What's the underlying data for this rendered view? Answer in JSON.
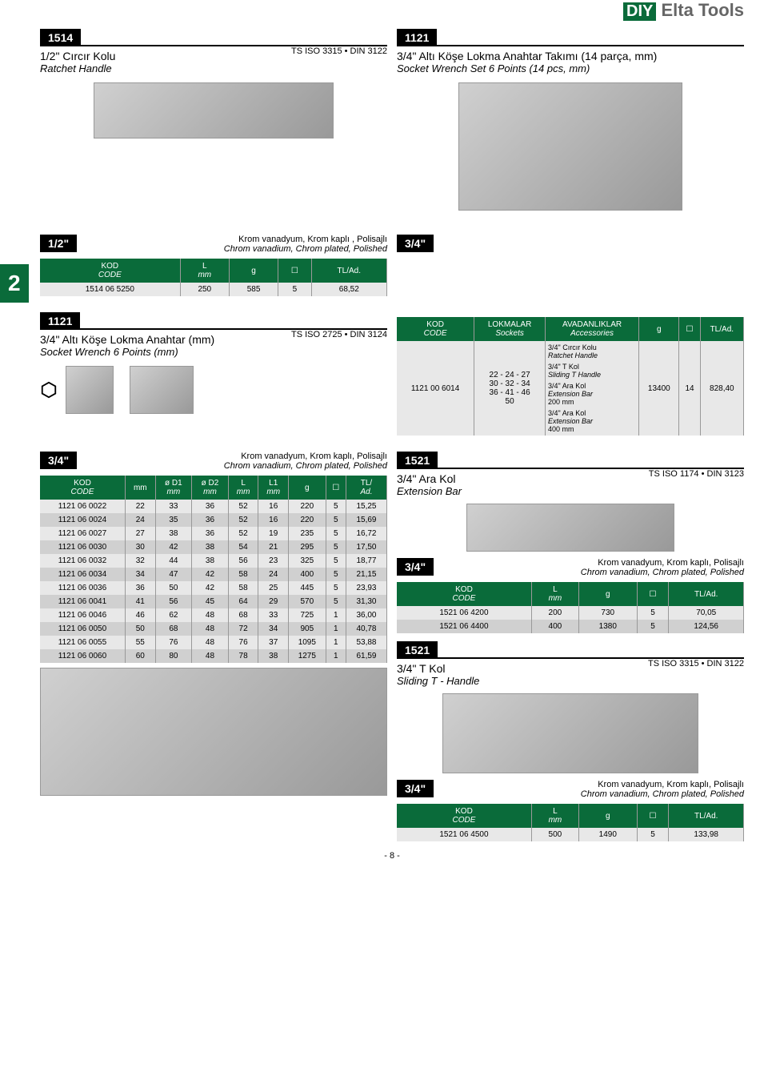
{
  "brand": {
    "diy": "DIY",
    "name": "Elta Tools"
  },
  "sec1514": {
    "tag": "1514",
    "title_tr": "1/2\" Cırcır Kolu",
    "title_en": "Ratchet Handle",
    "std": "TS ISO 3315 • DIN 3122",
    "size": "1/2\"",
    "mat_tr": "Krom vanadyum, Krom kaplı , Polisajlı",
    "mat_en": "Chrom vanadium, Chrom plated, Polished",
    "cols": [
      "KOD\nCODE",
      "L\nmm",
      "g",
      "☐",
      "TL/Ad."
    ],
    "rows": [
      [
        "1514 06 5250",
        "250",
        "585",
        "5",
        "68,52"
      ]
    ]
  },
  "sec1121set": {
    "tag": "1121",
    "title_tr": "3/4\" Altı Köşe Lokma Anahtar Takımı (14 parça, mm)",
    "title_en": "Socket Wrench Set 6 Points (14 pcs, mm)",
    "size": "3/4\"",
    "cols": [
      "KOD\nCODE",
      "LOKMALAR\nSockets",
      "AVADANLIKLAR\nAccessories",
      "g",
      "☐",
      "TL/Ad."
    ],
    "code": "1121 00 6014",
    "sockets": "22 - 24 - 27\n30 - 32 - 34\n36 - 41 - 46\n50",
    "acc1_tr": "3/4\" Cırcır Kolu",
    "acc1_en": "Ratchet Handle",
    "acc2_tr": "3/4\" T Kol",
    "acc2_en": "Sliding T Handle",
    "acc3_tr": "3/4\" Ara Kol",
    "acc3_en": "Extension Bar",
    "acc3_sz": "200 mm",
    "acc4_tr": "3/4\" Ara Kol",
    "acc4_en": "Extension Bar",
    "acc4_sz": "400 mm",
    "g": "13400",
    "q": "14",
    "price": "828,40"
  },
  "sec1121": {
    "tag": "1121",
    "title_tr": "3/4\" Altı Köşe Lokma Anahtar (mm)",
    "title_en": "Socket Wrench 6 Points (mm)",
    "std": "TS ISO 2725 • DIN 3124",
    "size": "3/4\"",
    "mat_tr": "Krom vanadyum, Krom kaplı, Polisajlı",
    "mat_en": "Chrom vanadium, Chrom plated, Polished",
    "cols": [
      "KOD\nCODE",
      "mm",
      "ø D1\nmm",
      "ø D2\nmm",
      "L\nmm",
      "L1\nmm",
      "g",
      "☐",
      "TL/\nAd."
    ],
    "rows": [
      [
        "1121 06 0022",
        "22",
        "33",
        "36",
        "52",
        "16",
        "220",
        "5",
        "15,25"
      ],
      [
        "1121 06 0024",
        "24",
        "35",
        "36",
        "52",
        "16",
        "220",
        "5",
        "15,69"
      ],
      [
        "1121 06 0027",
        "27",
        "38",
        "36",
        "52",
        "19",
        "235",
        "5",
        "16,72"
      ],
      [
        "1121 06 0030",
        "30",
        "42",
        "38",
        "54",
        "21",
        "295",
        "5",
        "17,50"
      ],
      [
        "1121 06 0032",
        "32",
        "44",
        "38",
        "56",
        "23",
        "325",
        "5",
        "18,77"
      ],
      [
        "1121 06 0034",
        "34",
        "47",
        "42",
        "58",
        "24",
        "400",
        "5",
        "21,15"
      ],
      [
        "1121 06 0036",
        "36",
        "50",
        "42",
        "58",
        "25",
        "445",
        "5",
        "23,93"
      ],
      [
        "1121 06 0041",
        "41",
        "56",
        "45",
        "64",
        "29",
        "570",
        "5",
        "31,30"
      ],
      [
        "1121 06 0046",
        "46",
        "62",
        "48",
        "68",
        "33",
        "725",
        "1",
        "36,00"
      ],
      [
        "1121 06 0050",
        "50",
        "68",
        "48",
        "72",
        "34",
        "905",
        "1",
        "40,78"
      ],
      [
        "1121 06 0055",
        "55",
        "76",
        "48",
        "76",
        "37",
        "1095",
        "1",
        "53,88"
      ],
      [
        "1121 06 0060",
        "60",
        "80",
        "48",
        "78",
        "38",
        "1275",
        "1",
        "61,59"
      ]
    ]
  },
  "sec1521ext": {
    "tag": "1521",
    "title_tr": "3/4\" Ara Kol",
    "title_en": "Extension Bar",
    "std": "TS ISO 1174 • DIN 3123",
    "size": "3/4\"",
    "mat_tr": "Krom vanadyum, Krom kaplı, Polisajlı",
    "mat_en": "Chrom vanadium, Chrom plated, Polished",
    "cols": [
      "KOD\nCODE",
      "L\nmm",
      "g",
      "☐",
      "TL/Ad."
    ],
    "rows": [
      [
        "1521 06 4200",
        "200",
        "730",
        "5",
        "70,05"
      ],
      [
        "1521 06 4400",
        "400",
        "1380",
        "5",
        "124,56"
      ]
    ]
  },
  "sec1521t": {
    "tag": "1521",
    "title_tr": "3/4\" T Kol",
    "title_en": "Sliding T - Handle",
    "std": "TS ISO 3315 • DIN 3122",
    "size": "3/4\"",
    "mat_tr": "Krom vanadyum, Krom kaplı, Polisajlı",
    "mat_en": "Chrom vanadium, Chrom plated, Polished",
    "cols": [
      "KOD\nCODE",
      "L\nmm",
      "g",
      "☐",
      "TL/Ad."
    ],
    "rows": [
      [
        "1521 06 4500",
        "500",
        "1490",
        "5",
        "133,98"
      ]
    ]
  },
  "section_number": "2",
  "page_num": "- 8 -",
  "colors": {
    "green": "#0a6b3a",
    "black": "#000000"
  }
}
